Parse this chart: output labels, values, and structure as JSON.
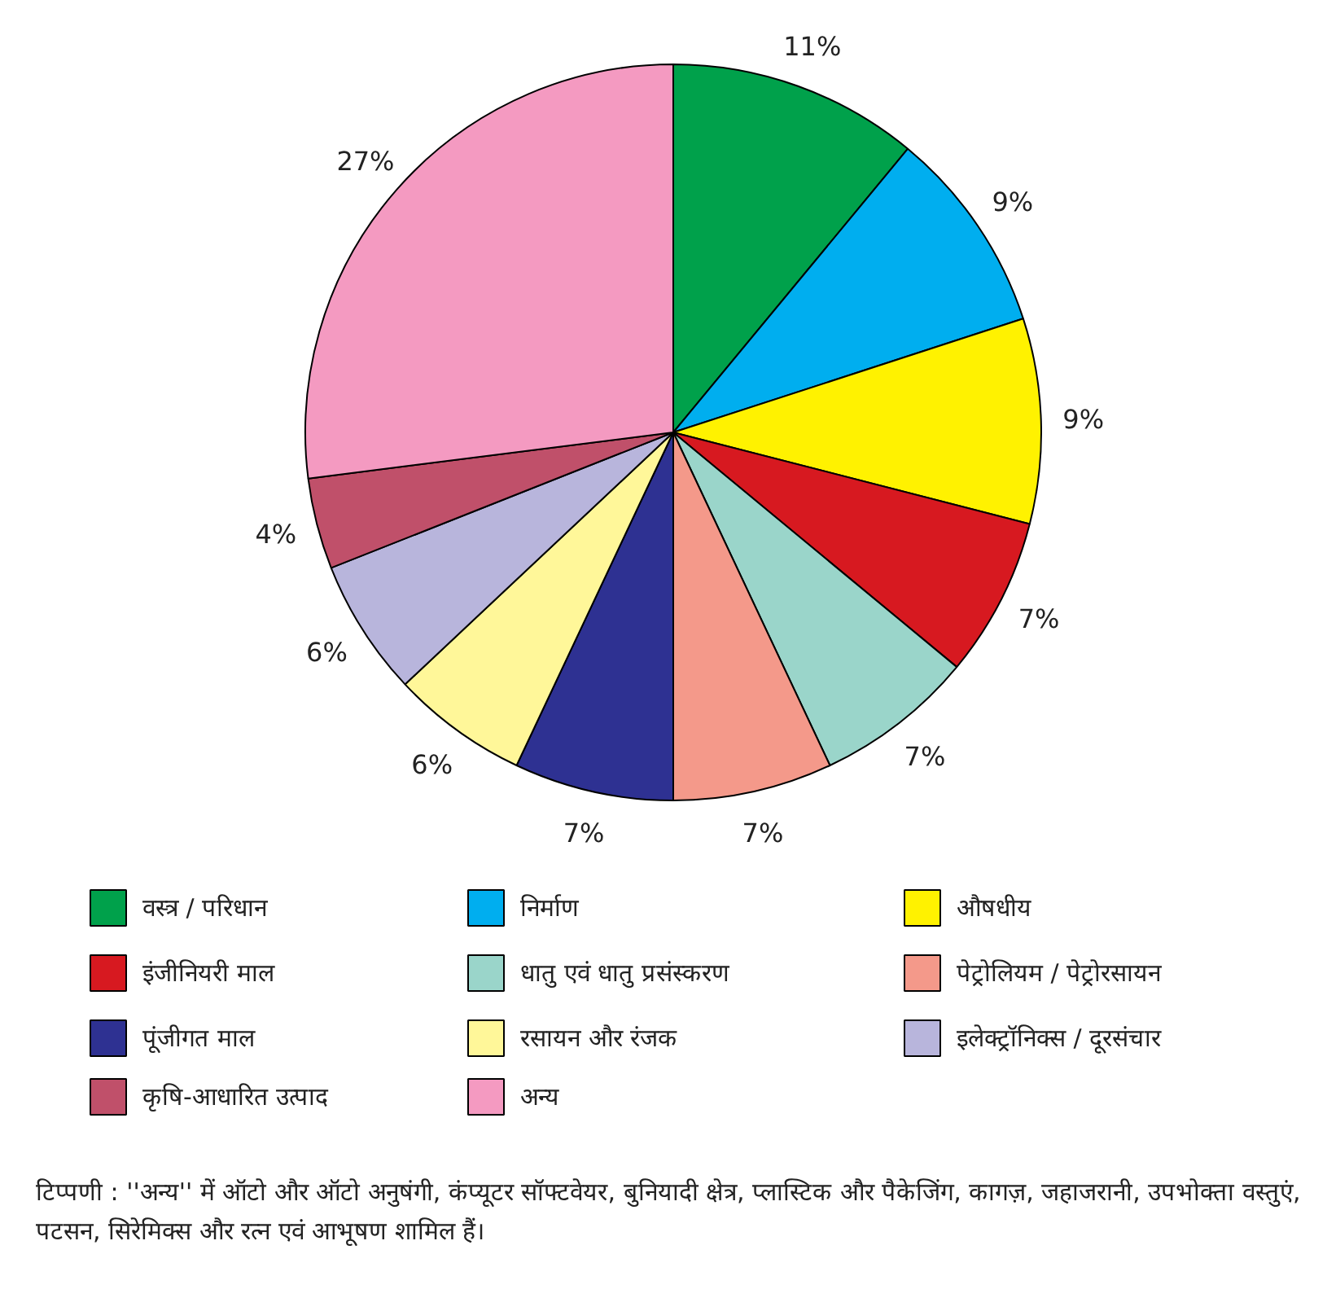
{
  "chart_data": {
    "type": "pie",
    "categories": [
      "वस्त्र / परिधान",
      "निर्माण",
      "औषधीय",
      "इंजीनियरी माल",
      "धातु एवं धातु प्रसंस्करण",
      "पेट्रोलियम / पेट्रोरसायन",
      "पूंजीगत माल",
      "रसायन और रंजक",
      "इलेक्ट्रॉनिक्स / दूरसंचार",
      "कृषि-आधारित उत्पाद",
      "अन्य"
    ],
    "values": [
      11,
      9,
      9,
      7,
      7,
      7,
      7,
      6,
      6,
      4,
      27
    ],
    "value_labels": [
      "11%",
      "9%",
      "9%",
      "7%",
      "7%",
      "7%",
      "7%",
      "6%",
      "6%",
      "4%",
      "27%"
    ],
    "colors": [
      "#00a14b",
      "#00aeef",
      "#fff200",
      "#d71920",
      "#9ad5ca",
      "#f4998a",
      "#2e3192",
      "#fff799",
      "#b8b5dc",
      "#c0506a",
      "#f49ac1"
    ],
    "legend": "bottom",
    "annotations": [
      "टिप्पणी : ''अन्य'' में ऑटो और ऑटो अनुषंगी, कंप्यूटर सॉफ्टवेयर, बुनियादी क्षेत्र, प्लास्टिक और पैकेजिंग, कागज़, जहाजरानी, उपभोक्ता वस्तुएं, पटसन, सिरेमिक्स और रत्न एवं आभूषण शामिल हैं।"
    ]
  }
}
